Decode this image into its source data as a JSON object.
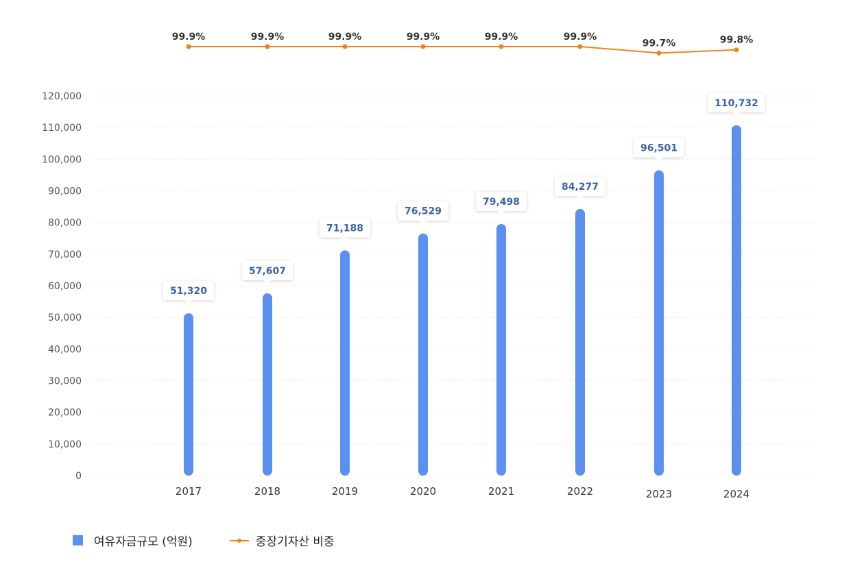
{
  "chart_data": {
    "type": "bar",
    "categories": [
      "2017",
      "2018",
      "2019",
      "2020",
      "2021",
      "2022",
      "2023",
      "2024"
    ],
    "series": [
      {
        "name": "여유자금규모 (억원)",
        "type": "bar",
        "values": [
          51320,
          57607,
          71188,
          76529,
          79498,
          84277,
          96501,
          110732
        ],
        "labels": [
          "51,320",
          "57,607",
          "71,188",
          "76,529",
          "79,498",
          "84,277",
          "96,501",
          "110,732"
        ],
        "color": "#5b8ff0"
      },
      {
        "name": "중장기자산 비중",
        "type": "line",
        "values": [
          99.9,
          99.9,
          99.9,
          99.9,
          99.9,
          99.9,
          99.7,
          99.8
        ],
        "labels": [
          "99.9%",
          "99.9%",
          "99.9%",
          "99.9%",
          "99.9%",
          "99.9%",
          "99.7%",
          "99.8%"
        ],
        "color": "#f0821e"
      }
    ],
    "ylim": [
      0,
      120000
    ],
    "yticks": [
      "0",
      "10,000",
      "20,000",
      "30,000",
      "40,000",
      "50,000",
      "60,000",
      "70,000",
      "80,000",
      "90,000",
      "100,000",
      "110,000",
      "120,000"
    ],
    "grid": true,
    "legend_position": "bottom-left",
    "label_color": "#3d62a8",
    "title": "",
    "xlabel": "",
    "ylabel": ""
  }
}
